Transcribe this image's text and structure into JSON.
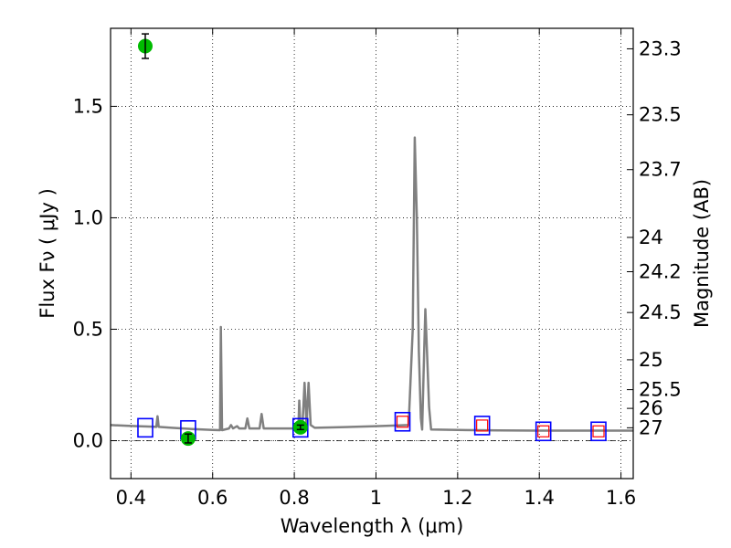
{
  "chart_data": {
    "type": "line",
    "xlabel": "Wavelength  λ (μm)",
    "ylabel": "Flux  Fν  ( μJy )",
    "y2label": "Magnitude (AB)",
    "xlim": [
      0.35,
      1.63
    ],
    "ylim": [
      -0.17,
      1.85
    ],
    "x_ticks": [
      {
        "value": 0.4,
        "label": "0.4"
      },
      {
        "value": 0.6,
        "label": "0.6"
      },
      {
        "value": 0.8,
        "label": "0.8"
      },
      {
        "value": 1.0,
        "label": "1"
      },
      {
        "value": 1.2,
        "label": "1.2"
      },
      {
        "value": 1.4,
        "label": "1.4"
      },
      {
        "value": 1.6,
        "label": "1.6"
      }
    ],
    "y_ticks": [
      {
        "value": 0.0,
        "label": "0.0"
      },
      {
        "value": 0.5,
        "label": "0.5"
      },
      {
        "value": 1.0,
        "label": "1.0"
      },
      {
        "value": 1.5,
        "label": "1.5"
      }
    ],
    "y2_ticks": [
      {
        "flux": 1.758,
        "label": "23.3"
      },
      {
        "flux": 1.462,
        "label": "23.5"
      },
      {
        "flux": 1.216,
        "label": "23.7"
      },
      {
        "flux": 0.912,
        "label": "24"
      },
      {
        "flux": 0.758,
        "label": "24.2"
      },
      {
        "flux": 0.575,
        "label": "24.5"
      },
      {
        "flux": 0.363,
        "label": "25"
      },
      {
        "flux": 0.229,
        "label": "25.5"
      },
      {
        "flux": 0.145,
        "label": "26"
      },
      {
        "flux": 0.058,
        "label": "27"
      }
    ],
    "grid": true,
    "zero_line": true,
    "colors": {
      "model": "#808080",
      "model_photometry": "#0000ff",
      "model_photometry_inner": "#ff0000",
      "observed": "#00bb00",
      "errorbar": "#000000"
    },
    "series": [
      {
        "kind": "model_spectrum",
        "points": [
          [
            0.35,
            0.07
          ],
          [
            0.4,
            0.066
          ],
          [
            0.45,
            0.063
          ],
          [
            0.462,
            0.062
          ],
          [
            0.465,
            0.11
          ],
          [
            0.468,
            0.062
          ],
          [
            0.5,
            0.058
          ],
          [
            0.55,
            0.052
          ],
          [
            0.6,
            0.048
          ],
          [
            0.618,
            0.047
          ],
          [
            0.62,
            0.51
          ],
          [
            0.623,
            0.047
          ],
          [
            0.64,
            0.055
          ],
          [
            0.645,
            0.07
          ],
          [
            0.65,
            0.055
          ],
          [
            0.66,
            0.065
          ],
          [
            0.665,
            0.055
          ],
          [
            0.68,
            0.055
          ],
          [
            0.685,
            0.1
          ],
          [
            0.69,
            0.055
          ],
          [
            0.715,
            0.055
          ],
          [
            0.72,
            0.12
          ],
          [
            0.725,
            0.055
          ],
          [
            0.8,
            0.055
          ],
          [
            0.81,
            0.06
          ],
          [
            0.812,
            0.18
          ],
          [
            0.815,
            0.06
          ],
          [
            0.82,
            0.065
          ],
          [
            0.825,
            0.26
          ],
          [
            0.83,
            0.07
          ],
          [
            0.835,
            0.26
          ],
          [
            0.84,
            0.07
          ],
          [
            0.85,
            0.058
          ],
          [
            0.9,
            0.06
          ],
          [
            1.0,
            0.065
          ],
          [
            1.08,
            0.07
          ],
          [
            1.09,
            0.5
          ],
          [
            1.095,
            1.36
          ],
          [
            1.1,
            1.0
          ],
          [
            1.105,
            0.4
          ],
          [
            1.11,
            0.1
          ],
          [
            1.113,
            0.05
          ],
          [
            1.118,
            0.4
          ],
          [
            1.121,
            0.59
          ],
          [
            1.125,
            0.4
          ],
          [
            1.13,
            0.15
          ],
          [
            1.135,
            0.05
          ],
          [
            1.2,
            0.048
          ],
          [
            1.3,
            0.046
          ],
          [
            1.4,
            0.045
          ],
          [
            1.5,
            0.045
          ],
          [
            1.63,
            0.045
          ]
        ]
      },
      {
        "kind": "model_photometry",
        "points": [
          {
            "x": 0.435,
            "y": 0.058,
            "inner": false
          },
          {
            "x": 0.54,
            "y": 0.048,
            "inner": false
          },
          {
            "x": 0.815,
            "y": 0.058,
            "inner": false
          },
          {
            "x": 1.065,
            "y": 0.085,
            "inner": true
          },
          {
            "x": 1.26,
            "y": 0.068,
            "inner": true
          },
          {
            "x": 1.41,
            "y": 0.042,
            "inner": true
          },
          {
            "x": 1.545,
            "y": 0.042,
            "inner": true
          }
        ]
      },
      {
        "kind": "observed",
        "points": [
          {
            "x": 0.435,
            "y": 1.77,
            "err": 0.055
          },
          {
            "x": 0.54,
            "y": 0.01,
            "err": 0.02
          },
          {
            "x": 0.815,
            "y": 0.06,
            "err": 0.01
          }
        ]
      }
    ]
  }
}
